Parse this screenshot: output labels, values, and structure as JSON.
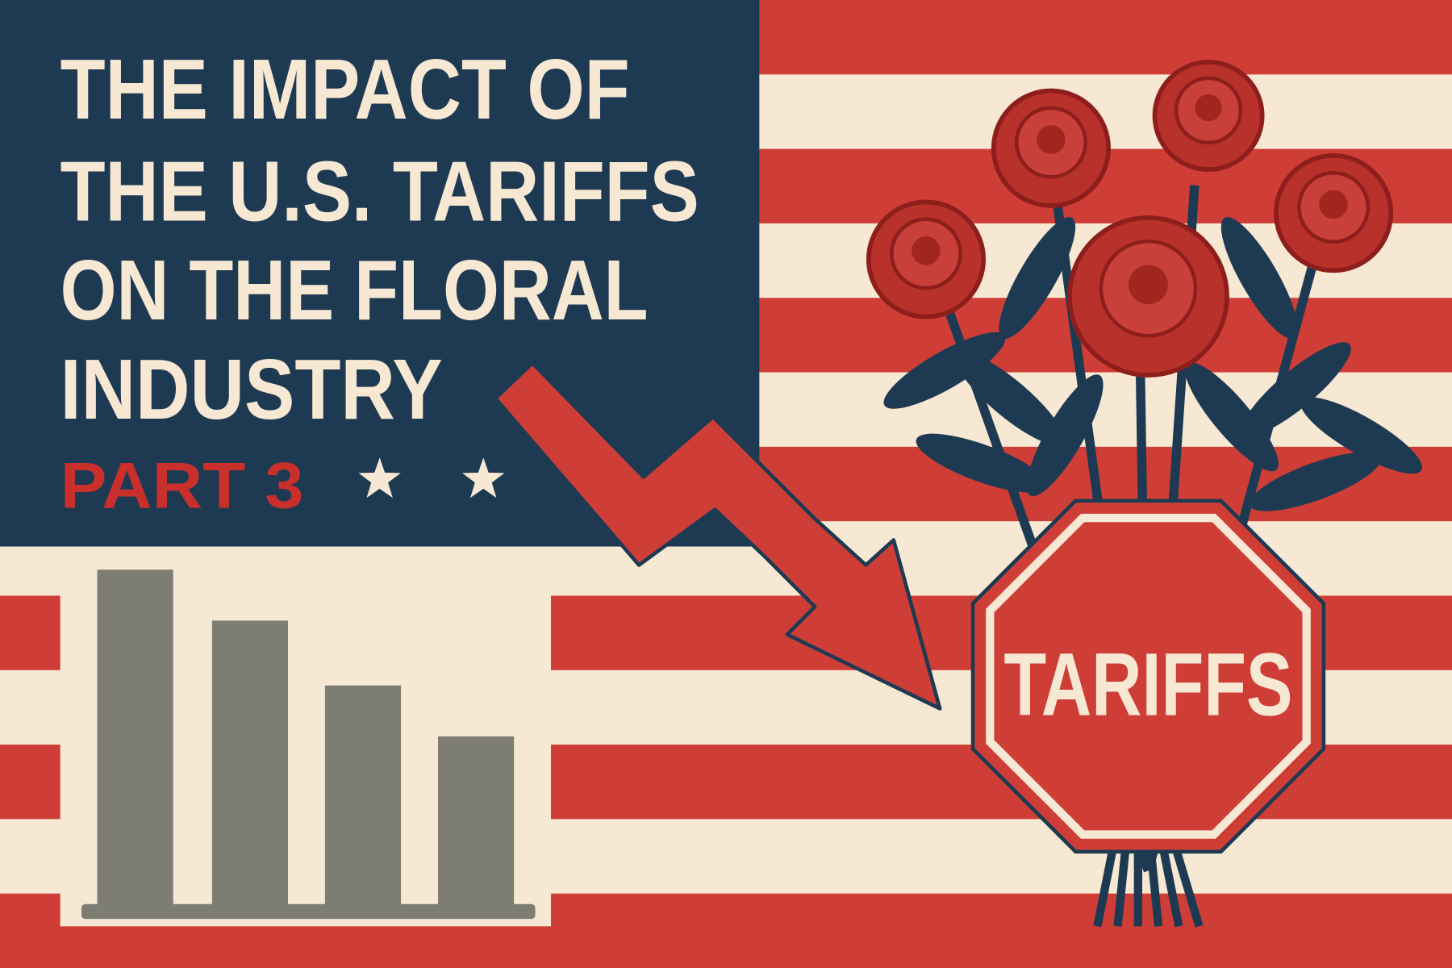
{
  "title": [
    "THE IMPACT OF",
    "THE U.S. TARIFFS",
    "ON THE FLORAL",
    "INDUSTRY"
  ],
  "subtitle": "PART 3",
  "sign_text": "TARIFFS"
}
